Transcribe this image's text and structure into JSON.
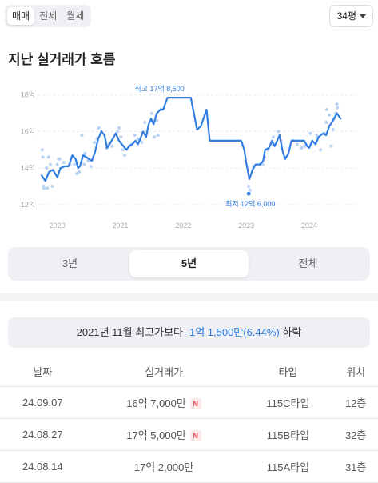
{
  "deal_tabs": [
    {
      "label": "매매",
      "active": true
    },
    {
      "label": "전세",
      "active": false
    },
    {
      "label": "월세",
      "active": false
    }
  ],
  "size_selector": {
    "label": "34평",
    "icon": "caret-down-icon"
  },
  "title": "지난 실거래가 흐름",
  "chart_data": {
    "type": "line",
    "title": "",
    "y_tick_labels": [
      "18억",
      "16억",
      "14억",
      "12억"
    ],
    "y_ticks": [
      18,
      16,
      14,
      12
    ],
    "x_tick_labels": [
      "2020",
      "2021",
      "2022",
      "2023",
      "2024"
    ],
    "x_ticks": [
      2020,
      2021,
      2022,
      2023,
      2024
    ],
    "xlim": [
      2019.75,
      2024.75
    ],
    "ylim": [
      11.6,
      18.6
    ],
    "y_unit": "억",
    "grid": "horizontal",
    "line_color": "#2f7de1",
    "series": [
      {
        "values": [
          [
            2019.75,
            13.6
          ],
          [
            2019.81,
            13.3
          ],
          [
            2019.87,
            13.8
          ],
          [
            2019.93,
            13.9
          ],
          [
            2020.0,
            13.5
          ],
          [
            2020.05,
            14.0
          ],
          [
            2020.12,
            14.1
          ],
          [
            2020.18,
            14.1
          ],
          [
            2020.24,
            14.7
          ],
          [
            2020.29,
            14.5
          ],
          [
            2020.33,
            14.0
          ],
          [
            2020.36,
            14.1
          ],
          [
            2020.41,
            14.7
          ],
          [
            2020.46,
            14.6
          ],
          [
            2020.5,
            14.5
          ],
          [
            2020.55,
            14.4
          ],
          [
            2020.6,
            14.9
          ],
          [
            2020.65,
            15.6
          ],
          [
            2020.7,
            16.0
          ],
          [
            2020.75,
            15.8
          ],
          [
            2020.79,
            15.1
          ],
          [
            2020.83,
            15.3
          ],
          [
            2020.88,
            15.6
          ],
          [
            2020.93,
            15.9
          ],
          [
            2020.98,
            15.5
          ],
          [
            2021.05,
            15.2
          ],
          [
            2021.1,
            15.0
          ],
          [
            2021.14,
            15.2
          ],
          [
            2021.19,
            15.3
          ],
          [
            2021.24,
            15.5
          ],
          [
            2021.28,
            15.3
          ],
          [
            2021.33,
            15.7
          ],
          [
            2021.36,
            16.0
          ],
          [
            2021.41,
            15.7
          ],
          [
            2021.45,
            16.4
          ],
          [
            2021.49,
            16.7
          ],
          [
            2021.53,
            16.4
          ],
          [
            2021.58,
            17.0
          ],
          [
            2021.64,
            17.2
          ],
          [
            2021.68,
            17.2
          ],
          [
            2021.75,
            17.85
          ],
          [
            2022.12,
            17.85
          ],
          [
            2022.22,
            16.1
          ],
          [
            2022.28,
            16.3
          ],
          [
            2022.37,
            17.2
          ],
          [
            2022.42,
            15.5
          ],
          [
            2022.92,
            15.5
          ],
          [
            2022.97,
            15.0
          ],
          [
            2023.0,
            14.3
          ],
          [
            2023.05,
            13.4
          ],
          [
            2023.1,
            13.9
          ],
          [
            2023.15,
            14.2
          ],
          [
            2023.22,
            14.2
          ],
          [
            2023.27,
            14.4
          ],
          [
            2023.3,
            15.0
          ],
          [
            2023.36,
            15.1
          ],
          [
            2023.41,
            15.5
          ],
          [
            2023.45,
            15.2
          ],
          [
            2023.48,
            15.4
          ],
          [
            2023.53,
            15.8
          ],
          [
            2023.58,
            14.9
          ],
          [
            2023.62,
            14.5
          ],
          [
            2023.67,
            14.8
          ],
          [
            2023.72,
            15.5
          ],
          [
            2023.92,
            15.5
          ],
          [
            2023.97,
            15.2
          ],
          [
            2024.0,
            15.1
          ],
          [
            2024.05,
            15.5
          ],
          [
            2024.1,
            15.3
          ],
          [
            2024.15,
            15.7
          ],
          [
            2024.22,
            15.9
          ],
          [
            2024.27,
            15.8
          ],
          [
            2024.32,
            16.3
          ],
          [
            2024.38,
            16.6
          ],
          [
            2024.44,
            17.0
          ],
          [
            2024.5,
            16.7
          ]
        ]
      }
    ],
    "scatter_points": [
      [
        2019.76,
        15.0
      ],
      [
        2019.77,
        14.6
      ],
      [
        2019.78,
        13.0
      ],
      [
        2019.79,
        12.9
      ],
      [
        2019.83,
        14.0
      ],
      [
        2019.84,
        12.9
      ],
      [
        2019.86,
        14.6
      ],
      [
        2019.89,
        14.2
      ],
      [
        2019.92,
        13.0
      ],
      [
        2020.0,
        14.2
      ],
      [
        2020.02,
        14.5
      ],
      [
        2020.04,
        14.5
      ],
      [
        2020.1,
        14.3
      ],
      [
        2020.2,
        14.2
      ],
      [
        2020.23,
        14.6
      ],
      [
        2020.27,
        14.2
      ],
      [
        2020.31,
        13.7
      ],
      [
        2020.35,
        13.8
      ],
      [
        2020.38,
        14.3
      ],
      [
        2020.39,
        15.8
      ],
      [
        2020.43,
        14.2
      ],
      [
        2020.44,
        14.8
      ],
      [
        2020.49,
        14.4
      ],
      [
        2020.53,
        14.1
      ],
      [
        2020.59,
        15.4
      ],
      [
        2020.63,
        15.6
      ],
      [
        2020.66,
        16.2
      ],
      [
        2020.7,
        16.0
      ],
      [
        2020.78,
        15.1
      ],
      [
        2020.82,
        15.3
      ],
      [
        2020.87,
        15.2
      ],
      [
        2020.96,
        16.0
      ],
      [
        2020.98,
        16.2
      ],
      [
        2021.01,
        15.7
      ],
      [
        2021.04,
        15.0
      ],
      [
        2021.07,
        14.7
      ],
      [
        2021.15,
        15.2
      ],
      [
        2021.18,
        15.3
      ],
      [
        2021.23,
        15.8
      ],
      [
        2021.28,
        15.6
      ],
      [
        2021.31,
        15.5
      ],
      [
        2021.34,
        15.4
      ],
      [
        2021.39,
        16.5
      ],
      [
        2021.43,
        15.9
      ],
      [
        2021.5,
        17.0
      ],
      [
        2021.54,
        15.7
      ],
      [
        2021.58,
        16.6
      ],
      [
        2021.6,
        15.8
      ],
      [
        2021.64,
        17.2
      ],
      [
        2023.03,
        12.6
      ],
      [
        2023.04,
        13.0
      ],
      [
        2023.06,
        12.8
      ],
      [
        2023.11,
        14.1
      ],
      [
        2023.21,
        14.2
      ],
      [
        2023.26,
        14.2
      ],
      [
        2023.29,
        14.6
      ],
      [
        2023.34,
        15.0
      ],
      [
        2023.41,
        15.3
      ],
      [
        2023.43,
        15.7
      ],
      [
        2023.51,
        16.0
      ],
      [
        2023.55,
        15.5
      ],
      [
        2023.61,
        14.6
      ],
      [
        2023.75,
        15.5
      ],
      [
        2023.81,
        15.3
      ],
      [
        2023.88,
        15.1
      ],
      [
        2023.93,
        15.2
      ],
      [
        2024.02,
        15.9
      ],
      [
        2024.03,
        15.3
      ],
      [
        2024.12,
        15.8
      ],
      [
        2024.13,
        15.7
      ],
      [
        2024.18,
        15.0
      ],
      [
        2024.25,
        15.9
      ],
      [
        2024.27,
        16.5
      ],
      [
        2024.28,
        17.2
      ],
      [
        2024.32,
        16.9
      ],
      [
        2024.35,
        15.2
      ],
      [
        2024.38,
        16.1
      ],
      [
        2024.39,
        16.7
      ],
      [
        2024.42,
        17.0
      ],
      [
        2024.44,
        17.5
      ],
      [
        2024.45,
        17.3
      ]
    ],
    "highlight_color": "#2f7de1",
    "annotations": {
      "max": {
        "label": "최고 17억 8,500",
        "x": 2021.75,
        "y": 17.85
      },
      "min": {
        "label": "최저 12억 6,000",
        "x": 2023.04,
        "y": 12.6
      }
    }
  },
  "range_tabs": [
    {
      "label": "3년",
      "active": false
    },
    {
      "label": "5년",
      "active": true
    },
    {
      "label": "전체",
      "active": false
    }
  ],
  "compare": {
    "prefix": "2021년 11월 최고가보다 ",
    "change": "-1억 1,500만(6.44%)",
    "suffix": " 하락"
  },
  "table": {
    "headers": [
      "날짜",
      "실거래가",
      "타입",
      "위치"
    ],
    "rows": [
      {
        "date": "24.09.07",
        "price": "16억 7,000만",
        "new_badge": "N",
        "type": "115C타입",
        "floor": "12층"
      },
      {
        "date": "24.08.27",
        "price": "17억 5,000만",
        "new_badge": "N",
        "type": "115B타입",
        "floor": "32층"
      },
      {
        "date": "24.08.14",
        "price": "17억 2,000만",
        "new_badge": "",
        "type": "115A타입",
        "floor": "31층"
      }
    ]
  }
}
